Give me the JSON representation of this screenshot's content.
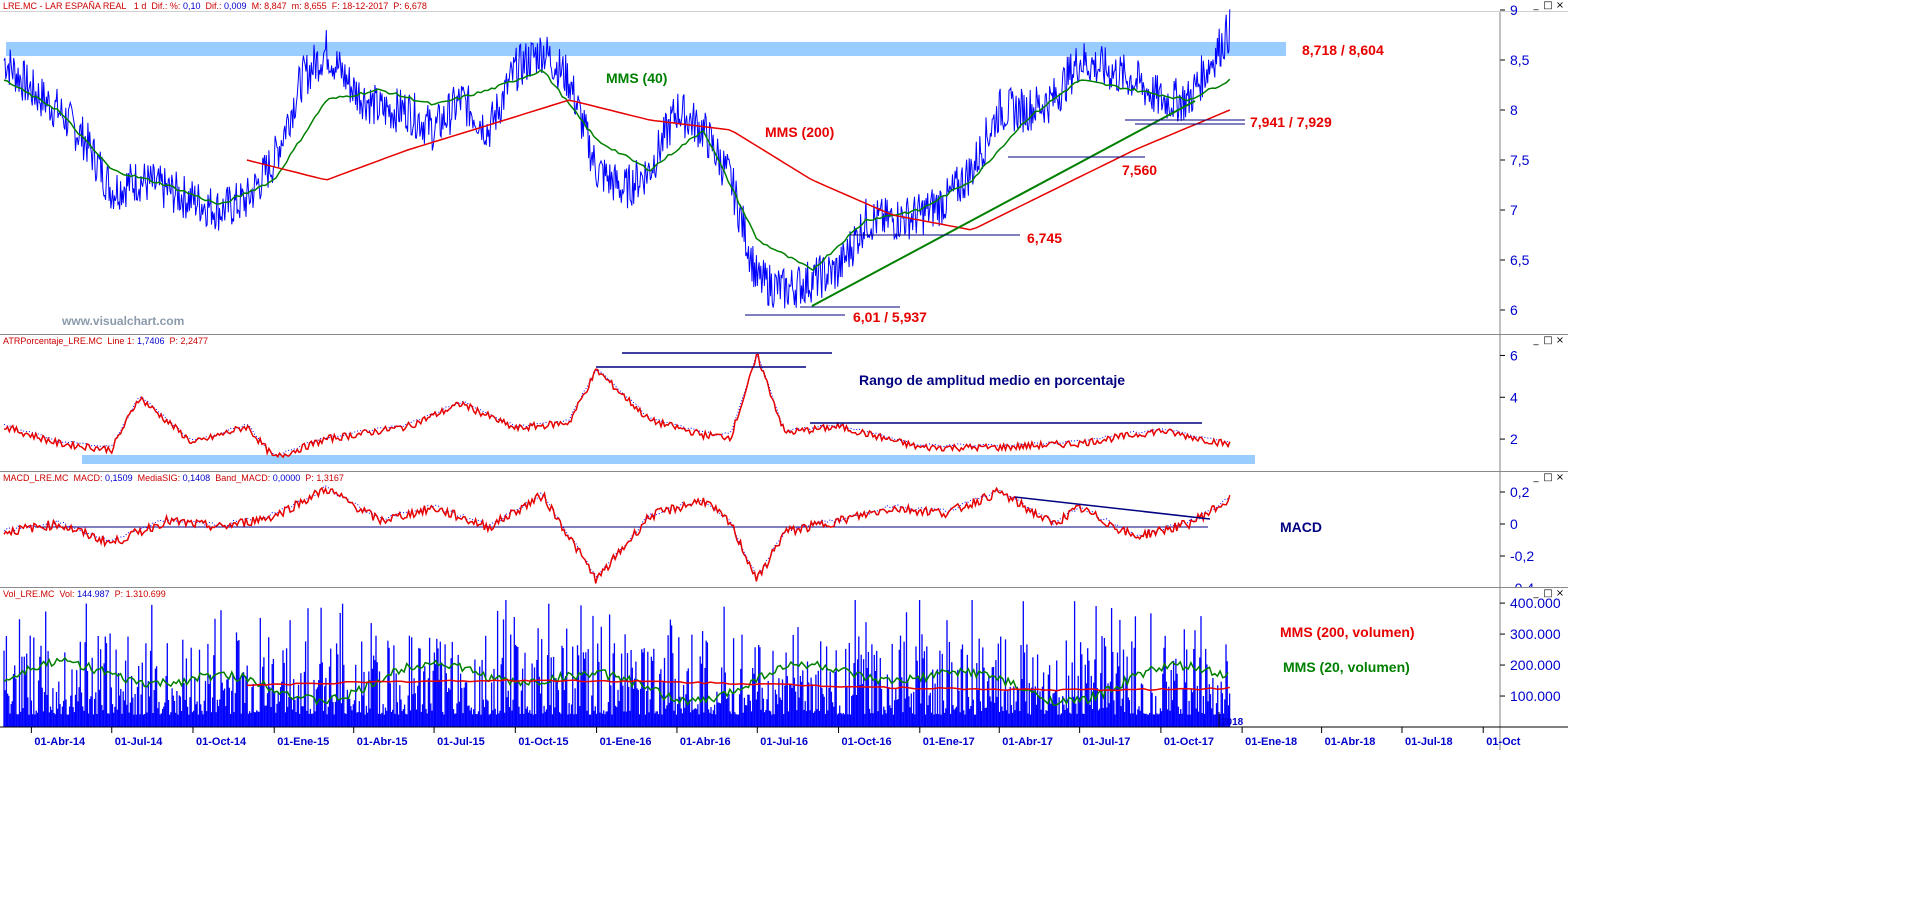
{
  "window_controls": {
    "minimize": "_",
    "restore": "□",
    "close": "×"
  },
  "colors": {
    "price": "#0000ff",
    "ma_short": "#008000",
    "ma_long": "#e60000",
    "resistance_band": "#99ccff",
    "annotation_navy": "#000080",
    "axis": "#0000cc"
  },
  "price_panel": {
    "header": {
      "symbol": "LRE.MC - LAR ESPAÑA REAL",
      "interval": "1 d",
      "dif_pct_label": "Dif.: %:",
      "dif_pct_value": "0,10",
      "dif_label": "Dif.:",
      "dif_value": "0,009",
      "max_label": "M:",
      "max_value": "8,847",
      "min_label": "m:",
      "min_value": "8,655",
      "date_label": "F:",
      "date_value": "18-12-2017",
      "p_label": "P:",
      "p_value": "6,678"
    },
    "y_ticks": [
      "9",
      "8,5",
      "8",
      "7,5",
      "7",
      "6,5",
      "6"
    ],
    "watermark": "www.visualchart.com",
    "labels": {
      "mms40": "MMS (40)",
      "mms200": "MMS (200)",
      "resistance": "8,718 / 8,604",
      "support_a": "7,941 / 7,929",
      "level_7560": "7,560",
      "level_6745": "6,745",
      "low": "6,01 / 5,937"
    }
  },
  "atr_panel": {
    "header": {
      "name": "ATRPorcentaje_LRE.MC",
      "line_label": "Line 1:",
      "line_value": "1,7406",
      "p_label": "P:",
      "p_value": "2,2477"
    },
    "y_ticks": [
      "6",
      "4",
      "2"
    ],
    "title": "Rango de amplitud medio en porcentaje"
  },
  "macd_panel": {
    "header": {
      "name": "MACD_LRE.MC",
      "macd_label": "MACD:",
      "macd_value": "0,1509",
      "sig_label": "MediaSIG:",
      "sig_value": "0,1408",
      "band_label": "Band_MACD:",
      "band_value": "0,0000",
      "p_label": "P:",
      "p_value": "1,3167"
    },
    "y_ticks": [
      "0,2",
      "0",
      "-0,2",
      "-0,4"
    ],
    "title": "MACD"
  },
  "volume_panel": {
    "header": {
      "name": "Vol_LRE.MC",
      "vol_label": "Vol:",
      "vol_value": "144.987",
      "p_label": "P:",
      "p_value": "1.310.699"
    },
    "y_ticks": [
      "400.000",
      "300.000",
      "200.000",
      "100.000"
    ],
    "labels": {
      "mms200": "MMS (200, volumen)",
      "mms20": "MMS (20, volumen)"
    },
    "year_label": "2018"
  },
  "x_axis": {
    "ticks": [
      "01-Abr-14",
      "01-Jul-14",
      "01-Oct-14",
      "01-Ene-15",
      "01-Abr-15",
      "01-Jul-15",
      "01-Oct-15",
      "01-Ene-16",
      "01-Abr-16",
      "01-Jul-16",
      "01-Oct-16",
      "01-Ene-17",
      "01-Abr-17",
      "01-Jul-17",
      "01-Oct-17",
      "01-Ene-18",
      "01-Abr-18",
      "01-Jul-18",
      "01-Oct"
    ]
  },
  "chart_data": [
    {
      "type": "line",
      "title": "",
      "series": [
        {
          "name": "",
          "x": [
            "2014-03-01",
            "2014-04-01",
            "2014-05-01",
            "2014-06-01",
            "2014-07-01",
            "2014-08-01",
            "2014-09-01",
            "2014-10-01",
            "2014-11-01",
            "2014-12-01",
            "2015-01-01",
            "2015-02-01",
            "2015-03-01",
            "2015-04-01",
            "2015-05-01",
            "2015-06-01",
            "2015-07-01",
            "2015-08-01",
            "2015-09-01",
            "2015-10-01",
            "2015-11-01",
            "2015-12-01",
            "2016-01-01",
            "2016-02-01",
            "2016-03-01",
            "2016-04-01",
            "2016-05-01",
            "2016-06-01",
            "2016-07-01",
            "2016-08-01",
            "2016-09-01",
            "2016-10-01",
            "2016-11-01",
            "2016-12-01",
            "2017-01-01",
            "2017-02-01",
            "2017-03-01",
            "2017-04-01",
            "2017-05-01",
            "2017-06-01",
            "2017-07-01",
            "2017-08-01",
            "2017-09-01",
            "2017-10-01",
            "2017-11-01",
            "2017-12-18"
          ],
          "values": [
            8.5,
            8.2,
            8.0,
            7.7,
            7.2,
            7.3,
            7.2,
            7.1,
            7.0,
            7.1,
            7.5,
            8.3,
            8.6,
            8.2,
            8.0,
            8.0,
            7.8,
            8.1,
            7.8,
            8.4,
            8.6,
            8.3,
            7.4,
            7.2,
            7.4,
            8.0,
            7.8,
            7.3,
            6.3,
            6.2,
            6.3,
            6.4,
            6.9,
            6.9,
            6.95,
            7.1,
            7.4,
            8.0,
            8.0,
            8.1,
            8.5,
            8.4,
            8.3,
            8.1,
            8.1,
            8.8
          ]
        },
        {
          "name": "MMS (40)",
          "x": [
            "2014-03-01",
            "2014-05-01",
            "2014-07-01",
            "2014-09-01",
            "2014-11-01",
            "2015-01-01",
            "2015-03-01",
            "2015-05-01",
            "2015-07-01",
            "2015-09-01",
            "2015-11-01",
            "2016-01-01",
            "2016-03-01",
            "2016-05-01",
            "2016-07-01",
            "2016-09-01",
            "2016-11-01",
            "2017-01-01",
            "2017-03-01",
            "2017-05-01",
            "2017-07-01",
            "2017-09-01",
            "2017-11-01",
            "2017-12-18"
          ],
          "values": [
            8.3,
            8.0,
            7.4,
            7.25,
            7.05,
            7.3,
            8.1,
            8.2,
            8.05,
            8.2,
            8.4,
            7.7,
            7.4,
            7.8,
            6.7,
            6.4,
            6.9,
            7.0,
            7.3,
            7.9,
            8.3,
            8.2,
            8.1,
            8.3
          ]
        },
        {
          "name": "MMS (200)",
          "x": [
            "2014-12-01",
            "2015-03-01",
            "2015-06-01",
            "2015-09-01",
            "2015-12-01",
            "2016-03-01",
            "2016-06-01",
            "2016-09-01",
            "2016-12-01",
            "2017-03-01",
            "2017-06-01",
            "2017-09-01",
            "2017-12-18"
          ],
          "values": [
            7.5,
            7.3,
            7.6,
            7.85,
            8.1,
            7.9,
            7.8,
            7.3,
            6.95,
            6.8,
            7.2,
            7.6,
            8.0
          ]
        }
      ],
      "ylim": [
        5.8,
        9.0
      ],
      "ymin_label": "6",
      "annotations": [
        "8,718 / 8,604",
        "7,941 / 7,929",
        "7,560",
        "6,745",
        "6,01 / 5,937"
      ],
      "resistance_band": [
        8.62,
        8.75
      ]
    },
    {
      "type": "line",
      "title": "Rango de amplitud medio en porcentaje",
      "series": [
        {
          "name": "",
          "x": [
            "2014-03-01",
            "2014-05-01",
            "2014-07-01",
            "2014-08-01",
            "2014-10-01",
            "2014-12-01",
            "2015-01-01",
            "2015-03-01",
            "2015-06-01",
            "2015-08-01",
            "2015-10-01",
            "2015-12-01",
            "2016-01-01",
            "2016-03-01",
            "2016-05-01",
            "2016-06-01",
            "2016-07-01",
            "2016-08-01",
            "2016-10-01",
            "2017-01-01",
            "2017-04-01",
            "2017-07-01",
            "2017-10-01",
            "2017-12-18"
          ],
          "values": [
            2.6,
            1.8,
            1.5,
            4.0,
            1.8,
            2.6,
            1.1,
            2.0,
            2.6,
            3.7,
            2.5,
            2.8,
            5.3,
            2.9,
            2.2,
            2.1,
            6.0,
            2.3,
            2.6,
            1.6,
            1.6,
            1.8,
            2.4,
            1.74
          ]
        }
      ],
      "ylim": [
        1.0,
        6.5
      ]
    },
    {
      "type": "line",
      "title": "MACD",
      "series": [
        {
          "name": "",
          "x": [
            "2014-03-01",
            "2014-05-01",
            "2014-07-01",
            "2014-09-01",
            "2014-11-01",
            "2015-01-01",
            "2015-03-01",
            "2015-05-01",
            "2015-07-01",
            "2015-09-01",
            "2015-11-01",
            "2016-01-01",
            "2016-03-01",
            "2016-05-01",
            "2016-06-01",
            "2016-07-01",
            "2016-08-01",
            "2016-10-01",
            "2016-12-01",
            "2017-02-01",
            "2017-04-01",
            "2017-06-01",
            "2017-07-01",
            "2017-09-01",
            "2017-11-01",
            "2017-12-18"
          ],
          "values": [
            -0.05,
            0.0,
            -0.12,
            0.02,
            -0.02,
            0.05,
            0.22,
            0.02,
            0.1,
            -0.02,
            0.18,
            -0.35,
            0.05,
            0.15,
            0.0,
            -0.35,
            -0.05,
            0.02,
            0.1,
            0.07,
            0.2,
            0.0,
            0.1,
            -0.08,
            0.0,
            0.15
          ]
        }
      ],
      "ylim": [
        -0.4,
        0.25
      ]
    },
    {
      "type": "bar",
      "title": "",
      "series": [
        {
          "name": "MMS (200, volumen)",
          "values": [
            130000,
            140000,
            145000,
            150000,
            145000,
            150000,
            145000,
            150000
          ]
        },
        {
          "name": "MMS (20, volumen)",
          "values": [
            160000,
            100000,
            220000,
            140000,
            180000,
            150000,
            250000,
            140000
          ]
        }
      ],
      "ylim": [
        0,
        410000
      ]
    }
  ]
}
